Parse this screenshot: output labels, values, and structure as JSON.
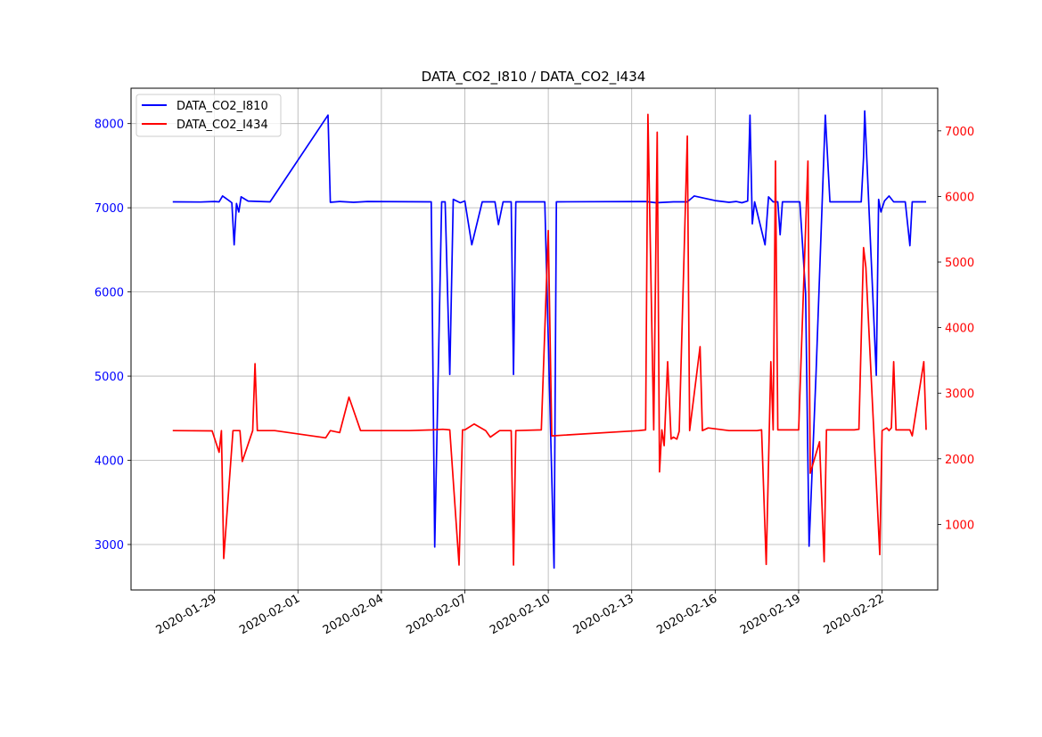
{
  "chart_data": {
    "type": "line",
    "title": "DATA_CO2_I810 / DATA_CO2_I434",
    "xlabel": "",
    "ylabel": "",
    "x_type": "date",
    "xlim": [
      "2020-01-26",
      "2020-02-24"
    ],
    "x_ticks": [
      "2020-01-29",
      "2020-02-01",
      "2020-02-04",
      "2020-02-07",
      "2020-02-10",
      "2020-02-13",
      "2020-02-16",
      "2020-02-19",
      "2020-02-22"
    ],
    "grid": true,
    "legend_position": "top-left",
    "axes": {
      "left": {
        "ylim": [
          2460,
          8420
        ],
        "ticks": [
          3000,
          4000,
          5000,
          6000,
          7000,
          8000
        ],
        "color": "#0000ff"
      },
      "right": {
        "ylim": [
          0,
          7650
        ],
        "ticks": [
          1000,
          2000,
          3000,
          4000,
          5000,
          6000,
          7000
        ],
        "color": "#ff0000"
      }
    },
    "series": [
      {
        "name": "DATA_CO2_I810",
        "axis": "left",
        "color": "#0000ff",
        "points": [
          [
            "2020-01-27 12:00",
            7070
          ],
          [
            "2020-01-28 12:00",
            7068
          ],
          [
            "2020-01-29 00:00",
            7075
          ],
          [
            "2020-01-29 04:00",
            7070
          ],
          [
            "2020-01-29 07:00",
            7140
          ],
          [
            "2020-01-29 12:00",
            7090
          ],
          [
            "2020-01-29 15:00",
            7060
          ],
          [
            "2020-01-29 17:00",
            6560
          ],
          [
            "2020-01-29 19:00",
            7050
          ],
          [
            "2020-01-29 21:00",
            6950
          ],
          [
            "2020-01-29 23:00",
            7130
          ],
          [
            "2020-01-30 05:00",
            7080
          ],
          [
            "2020-01-31 00:00",
            7070
          ],
          [
            "2020-02-02 02:00",
            8100
          ],
          [
            "2020-02-02 04:00",
            7065
          ],
          [
            "2020-02-02 12:00",
            7075
          ],
          [
            "2020-02-03 00:00",
            7065
          ],
          [
            "2020-02-03 12:00",
            7075
          ],
          [
            "2020-02-05 19:00",
            7070
          ],
          [
            "2020-02-05 22:00",
            2970
          ],
          [
            "2020-02-06 04:00",
            7070
          ],
          [
            "2020-02-06 07:00",
            7070
          ],
          [
            "2020-02-06 11:00",
            5020
          ],
          [
            "2020-02-06 14:00",
            7100
          ],
          [
            "2020-02-06 20:00",
            7060
          ],
          [
            "2020-02-07 00:00",
            7080
          ],
          [
            "2020-02-07 06:00",
            6560
          ],
          [
            "2020-02-07 15:00",
            7070
          ],
          [
            "2020-02-08 02:00",
            7070
          ],
          [
            "2020-02-08 05:00",
            6800
          ],
          [
            "2020-02-08 09:00",
            7070
          ],
          [
            "2020-02-08 16:00",
            7070
          ],
          [
            "2020-02-08 18:00",
            5020
          ],
          [
            "2020-02-08 20:00",
            7070
          ],
          [
            "2020-02-09 21:00",
            7070
          ],
          [
            "2020-02-10 05:00",
            2720
          ],
          [
            "2020-02-10 07:00",
            7070
          ],
          [
            "2020-02-13 12:00",
            7075
          ],
          [
            "2020-02-13 21:00",
            7060
          ],
          [
            "2020-02-14 12:00",
            7070
          ],
          [
            "2020-02-15 00:00",
            7070
          ],
          [
            "2020-02-15 06:00",
            7140
          ],
          [
            "2020-02-16 00:00",
            7085
          ],
          [
            "2020-02-16 12:00",
            7065
          ],
          [
            "2020-02-16 18:00",
            7075
          ],
          [
            "2020-02-16 23:00",
            7060
          ],
          [
            "2020-02-17 04:00",
            7080
          ],
          [
            "2020-02-17 06:00",
            8100
          ],
          [
            "2020-02-17 08:00",
            6810
          ],
          [
            "2020-02-17 10:00",
            7070
          ],
          [
            "2020-02-17 19:00",
            6560
          ],
          [
            "2020-02-17 22:00",
            7130
          ],
          [
            "2020-02-18 02:00",
            7070
          ],
          [
            "2020-02-18 06:00",
            7070
          ],
          [
            "2020-02-18 08:00",
            6680
          ],
          [
            "2020-02-18 10:00",
            7070
          ],
          [
            "2020-02-18 22:00",
            7070
          ],
          [
            "2020-02-19 01:00",
            7070
          ],
          [
            "2020-02-19 06:00",
            5980
          ],
          [
            "2020-02-19 09:00",
            2980
          ],
          [
            "2020-02-19 15:00",
            5030
          ],
          [
            "2020-02-19 23:00",
            8100
          ],
          [
            "2020-02-20 03:00",
            7070
          ],
          [
            "2020-02-21 06:00",
            7070
          ],
          [
            "2020-02-21 08:00",
            7600
          ],
          [
            "2020-02-21 09:00",
            8150
          ],
          [
            "2020-02-21 19:00",
            5010
          ],
          [
            "2020-02-21 21:00",
            7100
          ],
          [
            "2020-02-21 23:00",
            6950
          ],
          [
            "2020-02-22 02:00",
            7080
          ],
          [
            "2020-02-22 06:00",
            7140
          ],
          [
            "2020-02-22 10:00",
            7070
          ],
          [
            "2020-02-22 20:00",
            7070
          ],
          [
            "2020-02-23 00:00",
            6550
          ],
          [
            "2020-02-23 02:00",
            7070
          ],
          [
            "2020-02-23 14:00",
            7070
          ]
        ]
      },
      {
        "name": "DATA_CO2_I434",
        "axis": "right",
        "color": "#ff0000",
        "points": [
          [
            "2020-01-27 12:00",
            2430
          ],
          [
            "2020-01-28 22:00",
            2425
          ],
          [
            "2020-01-29 04:00",
            2100
          ],
          [
            "2020-01-29 06:00",
            2430
          ],
          [
            "2020-01-29 08:00",
            480
          ],
          [
            "2020-01-29 16:00",
            2430
          ],
          [
            "2020-01-29 22:00",
            2430
          ],
          [
            "2020-01-30 00:00",
            1960
          ],
          [
            "2020-01-30 09:00",
            2430
          ],
          [
            "2020-01-30 11:00",
            3450
          ],
          [
            "2020-01-30 13:00",
            2430
          ],
          [
            "2020-01-31 04:00",
            2430
          ],
          [
            "2020-02-02 00:00",
            2320
          ],
          [
            "2020-02-02 04:00",
            2430
          ],
          [
            "2020-02-02 12:00",
            2400
          ],
          [
            "2020-02-02 20:00",
            2940
          ],
          [
            "2020-02-03 06:00",
            2430
          ],
          [
            "2020-02-05 00:00",
            2430
          ],
          [
            "2020-02-05 20:00",
            2440
          ],
          [
            "2020-02-06 05:00",
            2450
          ],
          [
            "2020-02-06 11:00",
            2440
          ],
          [
            "2020-02-06 19:00",
            380
          ],
          [
            "2020-02-06 22:00",
            2440
          ],
          [
            "2020-02-07 00:00",
            2440
          ],
          [
            "2020-02-07 08:00",
            2530
          ],
          [
            "2020-02-07 18:00",
            2430
          ],
          [
            "2020-02-07 22:00",
            2330
          ],
          [
            "2020-02-08 06:00",
            2430
          ],
          [
            "2020-02-08 16:00",
            2430
          ],
          [
            "2020-02-08 18:00",
            380
          ],
          [
            "2020-02-08 20:00",
            2430
          ],
          [
            "2020-02-09 18:00",
            2440
          ],
          [
            "2020-02-10 00:00",
            5480
          ],
          [
            "2020-02-10 03:00",
            2350
          ],
          [
            "2020-02-13 06:00",
            2430
          ],
          [
            "2020-02-13 12:00",
            2440
          ],
          [
            "2020-02-13 14:00",
            7250
          ],
          [
            "2020-02-13 19:00",
            2440
          ],
          [
            "2020-02-13 22:00",
            6980
          ],
          [
            "2020-02-14 00:00",
            1800
          ],
          [
            "2020-02-14 02:00",
            2440
          ],
          [
            "2020-02-14 04:00",
            2200
          ],
          [
            "2020-02-14 07:00",
            3480
          ],
          [
            "2020-02-14 10:00",
            2300
          ],
          [
            "2020-02-14 12:00",
            2330
          ],
          [
            "2020-02-14 15:00",
            2300
          ],
          [
            "2020-02-14 17:00",
            2420
          ],
          [
            "2020-02-15 00:00",
            6920
          ],
          [
            "2020-02-15 02:00",
            2430
          ],
          [
            "2020-02-15 11:00",
            3710
          ],
          [
            "2020-02-15 13:00",
            2430
          ],
          [
            "2020-02-15 18:00",
            2470
          ],
          [
            "2020-02-16 12:00",
            2430
          ],
          [
            "2020-02-16 18:00",
            2430
          ],
          [
            "2020-02-17 06:00",
            2430
          ],
          [
            "2020-02-17 12:00",
            2430
          ],
          [
            "2020-02-17 16:00",
            2440
          ],
          [
            "2020-02-17 20:00",
            390
          ],
          [
            "2020-02-18 00:00",
            3480
          ],
          [
            "2020-02-18 02:00",
            2440
          ],
          [
            "2020-02-18 04:00",
            6540
          ],
          [
            "2020-02-18 06:00",
            2440
          ],
          [
            "2020-02-18 12:00",
            2440
          ],
          [
            "2020-02-19 00:00",
            2440
          ],
          [
            "2020-02-19 08:00",
            6540
          ],
          [
            "2020-02-19 10:00",
            1780
          ],
          [
            "2020-02-19 18:00",
            2260
          ],
          [
            "2020-02-19 22:00",
            430
          ],
          [
            "2020-02-20 00:00",
            2440
          ],
          [
            "2020-02-21 00:00",
            2440
          ],
          [
            "2020-02-21 04:00",
            2450
          ],
          [
            "2020-02-21 08:00",
            5220
          ],
          [
            "2020-02-21 10:00",
            4920
          ],
          [
            "2020-02-21 22:00",
            540
          ],
          [
            "2020-02-22 00:00",
            2430
          ],
          [
            "2020-02-22 04:00",
            2470
          ],
          [
            "2020-02-22 06:00",
            2430
          ],
          [
            "2020-02-22 08:00",
            2470
          ],
          [
            "2020-02-22 10:00",
            3480
          ],
          [
            "2020-02-22 12:00",
            2440
          ],
          [
            "2020-02-23 00:00",
            2440
          ],
          [
            "2020-02-23 02:00",
            2350
          ],
          [
            "2020-02-23 12:00",
            3480
          ],
          [
            "2020-02-23 14:00",
            2440
          ]
        ]
      }
    ]
  }
}
